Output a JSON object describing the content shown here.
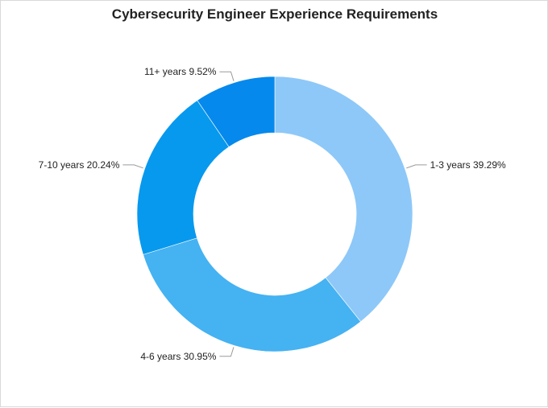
{
  "chart_data": {
    "type": "pie",
    "variant": "donut",
    "title": "Cybersecurity Engineer Experience Requirements",
    "slices": [
      {
        "label": "1-3 years",
        "value": 39.29,
        "value_text": "39.29%",
        "color": "#8dc8f8"
      },
      {
        "label": "4-6 years",
        "value": 30.95,
        "value_text": "30.95%",
        "color": "#45b2f2"
      },
      {
        "label": "7-10 years",
        "value": 20.24,
        "value_text": "20.24%",
        "color": "#0799ee"
      },
      {
        "label": "11+ years",
        "value": 9.52,
        "value_text": "9.52%",
        "color": "#0589ec"
      }
    ],
    "legend": "none",
    "label_position": "outside"
  }
}
